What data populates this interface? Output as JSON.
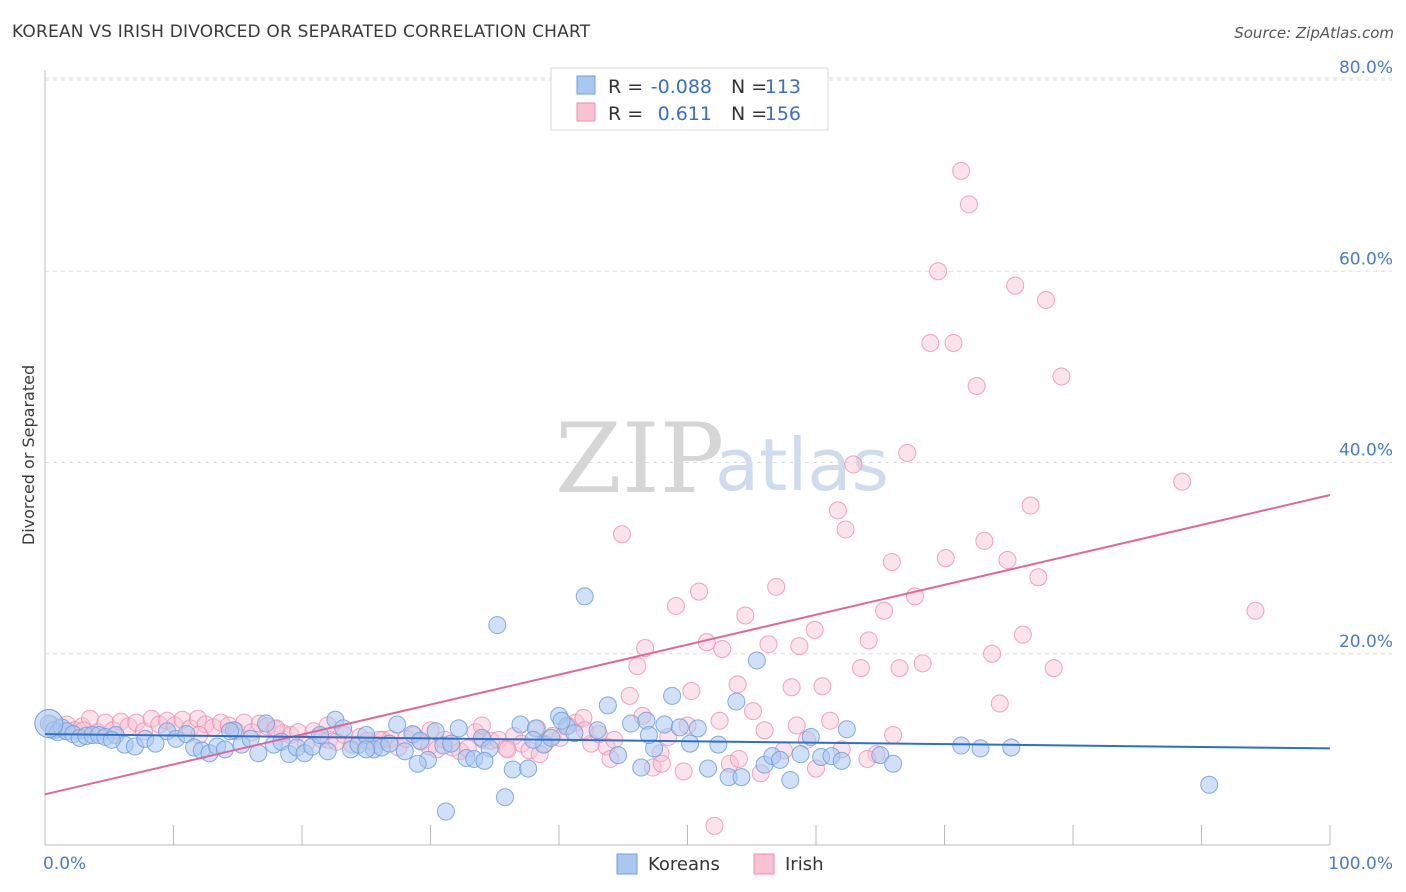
{
  "title": "KOREAN VS IRISH DIVORCED OR SEPARATED CORRELATION CHART",
  "source": "Source: ZipAtlas.com",
  "watermark": {
    "zip": "ZIP",
    "atlas": "atlas"
  },
  "legend": {
    "rows": [
      {
        "r_label": "R =",
        "r_value": "-0.088",
        "n_label": "N =",
        "n_value": "113"
      },
      {
        "r_label": "R =",
        "r_value": "0.611",
        "n_label": "N =",
        "n_value": "156"
      }
    ]
  },
  "bottom_legend": [
    "Koreans",
    "Irish"
  ],
  "colors": {
    "korean_fill": "#a9c8f0",
    "korean_stroke": "#6f9fdc",
    "korean_line": "#2f6fcb",
    "irish_fill": "#f7c2d2",
    "irish_stroke": "#ec8fae",
    "irish_line": "#e0679a",
    "tick": "#4a7cc7",
    "grid": "#dddddd"
  },
  "chart_data": {
    "type": "scatter",
    "title": "KOREAN VS IRISH DIVORCED OR SEPARATED CORRELATION CHART",
    "xlabel": "",
    "ylabel": "Divorced or Separated",
    "xlim": [
      0,
      100
    ],
    "ylim": [
      0,
      80
    ],
    "x_tick_labels": [
      "0.0%",
      "100.0%"
    ],
    "y_ticks": [
      20,
      40,
      60,
      80
    ],
    "y_tick_labels": [
      "20.0%",
      "40.0%",
      "60.0%",
      "80.0%"
    ],
    "grid": true,
    "series": [
      {
        "name": "Koreans",
        "R": -0.088,
        "N": 113,
        "trend": {
          "x": [
            0,
            100
          ],
          "y": [
            11.6,
            10.1
          ]
        },
        "points": [
          [
            0.3,
            12.7
          ],
          [
            0.7,
            12.0
          ],
          [
            1.0,
            11.8
          ],
          [
            1.3,
            12.3
          ],
          [
            1.7,
            11.9
          ],
          [
            2.2,
            11.6
          ],
          [
            2.7,
            11.2
          ],
          [
            3.2,
            11.4
          ],
          [
            3.7,
            11.5
          ],
          [
            4.2,
            11.5
          ],
          [
            4.7,
            11.3
          ],
          [
            5.5,
            11.5
          ],
          [
            6.2,
            10.5
          ],
          [
            7.0,
            10.3
          ],
          [
            7.8,
            11.1
          ],
          [
            8.6,
            10.6
          ],
          [
            9.5,
            11.9
          ],
          [
            10.2,
            11.1
          ],
          [
            11.0,
            11.6
          ],
          [
            11.6,
            10.2
          ],
          [
            12.2,
            9.9
          ],
          [
            12.8,
            9.6
          ],
          [
            13.4,
            10.3
          ],
          [
            14.0,
            10.0
          ],
          [
            14.7,
            12.0
          ],
          [
            15.3,
            10.5
          ],
          [
            16.0,
            11.1
          ],
          [
            16.6,
            9.6
          ],
          [
            17.2,
            12.7
          ],
          [
            17.8,
            10.5
          ],
          [
            18.4,
            10.8
          ],
          [
            19.0,
            9.5
          ],
          [
            19.6,
            10.2
          ],
          [
            20.2,
            9.6
          ],
          [
            20.8,
            10.3
          ],
          [
            21.4,
            11.5
          ],
          [
            22.0,
            9.8
          ],
          [
            22.6,
            13.1
          ],
          [
            23.2,
            12.2
          ],
          [
            23.8,
            10.0
          ],
          [
            24.4,
            10.5
          ],
          [
            25.0,
            11.5
          ],
          [
            25.6,
            10.0
          ],
          [
            26.2,
            10.2
          ],
          [
            26.8,
            10.6
          ],
          [
            27.4,
            12.6
          ],
          [
            28.0,
            9.8
          ],
          [
            28.6,
            11.6
          ],
          [
            29.2,
            10.9
          ],
          [
            29.8,
            8.9
          ],
          [
            30.4,
            11.9
          ],
          [
            31.0,
            10.4
          ],
          [
            31.6,
            10.6
          ],
          [
            32.2,
            12.2
          ],
          [
            32.8,
            9.1
          ],
          [
            33.4,
            9.0
          ],
          [
            34.0,
            11.2
          ],
          [
            34.6,
            10.1
          ],
          [
            35.2,
            23.0
          ],
          [
            35.8,
            5.0
          ],
          [
            36.4,
            7.9
          ],
          [
            37.0,
            12.6
          ],
          [
            37.6,
            8.0
          ],
          [
            38.2,
            12.2
          ],
          [
            38.8,
            10.5
          ],
          [
            39.4,
            11.2
          ],
          [
            40.0,
            13.5
          ],
          [
            40.6,
            12.4
          ],
          [
            41.2,
            11.7
          ],
          [
            42.0,
            26.0
          ],
          [
            43.0,
            12.0
          ],
          [
            43.8,
            14.6
          ],
          [
            44.6,
            9.4
          ],
          [
            45.6,
            12.7
          ],
          [
            46.4,
            8.1
          ],
          [
            46.8,
            13.0
          ],
          [
            47.4,
            10.1
          ],
          [
            48.2,
            12.6
          ],
          [
            48.8,
            15.6
          ],
          [
            49.4,
            12.3
          ],
          [
            50.2,
            10.6
          ],
          [
            50.8,
            12.2
          ],
          [
            51.6,
            8.0
          ],
          [
            52.4,
            10.5
          ],
          [
            53.2,
            7.1
          ],
          [
            53.8,
            15.0
          ],
          [
            54.2,
            7.1
          ],
          [
            55.4,
            19.3
          ],
          [
            56.0,
            8.4
          ],
          [
            56.6,
            9.3
          ],
          [
            57.2,
            8.9
          ],
          [
            58.0,
            6.8
          ],
          [
            58.8,
            9.5
          ],
          [
            59.6,
            11.3
          ],
          [
            60.4,
            9.2
          ],
          [
            61.2,
            9.3
          ],
          [
            62.0,
            8.8
          ],
          [
            62.4,
            12.1
          ],
          [
            65.0,
            9.4
          ],
          [
            66.0,
            8.5
          ],
          [
            71.3,
            10.4
          ],
          [
            72.8,
            10.1
          ],
          [
            75.2,
            10.2
          ],
          [
            90.6,
            6.3
          ],
          [
            34.2,
            8.8
          ],
          [
            31.2,
            3.5
          ],
          [
            14.4,
            11.9
          ],
          [
            5.2,
            11.0
          ],
          [
            25.0,
            10.0
          ],
          [
            29.0,
            8.5
          ],
          [
            40.2,
            13.0
          ],
          [
            47.0,
            11.5
          ],
          [
            38.0,
            11.0
          ]
        ],
        "big_point": [
          0.3,
          12.7
        ]
      },
      {
        "name": "Irish",
        "R": 0.611,
        "N": 156,
        "trend": {
          "x": [
            0,
            100
          ],
          "y": [
            5.3,
            36.6
          ]
        },
        "points": [
          [
            0.5,
            12.6
          ],
          [
            1.1,
            12.2
          ],
          [
            1.7,
            12.6
          ],
          [
            2.3,
            12.0
          ],
          [
            2.9,
            12.4
          ],
          [
            3.5,
            13.2
          ],
          [
            4.1,
            11.8
          ],
          [
            4.7,
            12.8
          ],
          [
            5.3,
            12.0
          ],
          [
            5.9,
            12.9
          ],
          [
            6.5,
            12.4
          ],
          [
            7.1,
            12.8
          ],
          [
            7.7,
            11.9
          ],
          [
            8.3,
            13.2
          ],
          [
            8.9,
            12.6
          ],
          [
            9.5,
            13.0
          ],
          [
            10.1,
            12.5
          ],
          [
            10.7,
            13.1
          ],
          [
            11.3,
            12.2
          ],
          [
            11.9,
            13.2
          ],
          [
            12.5,
            12.6
          ],
          [
            13.1,
            12.3
          ],
          [
            13.7,
            12.8
          ],
          [
            14.3,
            12.5
          ],
          [
            14.9,
            11.9
          ],
          [
            15.5,
            12.8
          ],
          [
            16.1,
            11.8
          ],
          [
            16.7,
            12.7
          ],
          [
            17.3,
            12.4
          ],
          [
            17.9,
            12.1
          ],
          [
            18.5,
            11.7
          ],
          [
            19.1,
            11.5
          ],
          [
            19.7,
            11.8
          ],
          [
            20.3,
            10.6
          ],
          [
            20.9,
            11.9
          ],
          [
            21.5,
            11.1
          ],
          [
            22.1,
            11.0
          ],
          [
            22.7,
            10.8
          ],
          [
            23.3,
            11.5
          ],
          [
            23.9,
            10.5
          ],
          [
            24.5,
            11.3
          ],
          [
            25.1,
            10.9
          ],
          [
            25.7,
            10.5
          ],
          [
            26.3,
            11.0
          ],
          [
            26.9,
            11.1
          ],
          [
            27.5,
            10.2
          ],
          [
            28.1,
            11.1
          ],
          [
            28.7,
            11.5
          ],
          [
            29.3,
            10.8
          ],
          [
            29.9,
            10.3
          ],
          [
            30.5,
            10.0
          ],
          [
            31.1,
            11.0
          ],
          [
            31.7,
            10.2
          ],
          [
            32.3,
            9.8
          ],
          [
            32.9,
            10.1
          ],
          [
            33.5,
            11.8
          ],
          [
            34.1,
            11.0
          ],
          [
            34.7,
            10.9
          ],
          [
            35.3,
            11.0
          ],
          [
            35.9,
            10.1
          ],
          [
            36.5,
            11.4
          ],
          [
            37.1,
            10.6
          ],
          [
            37.7,
            9.9
          ],
          [
            38.3,
            12.2
          ],
          [
            38.9,
            10.6
          ],
          [
            39.5,
            11.4
          ],
          [
            40.1,
            11.2
          ],
          [
            40.7,
            12.5
          ],
          [
            41.3,
            12.8
          ],
          [
            41.9,
            13.3
          ],
          [
            42.5,
            10.6
          ],
          [
            43.1,
            11.6
          ],
          [
            43.7,
            10.3
          ],
          [
            44.3,
            11.0
          ],
          [
            44.9,
            32.5
          ],
          [
            45.5,
            15.6
          ],
          [
            46.1,
            18.7
          ],
          [
            46.7,
            20.6
          ],
          [
            47.3,
            8.1
          ],
          [
            47.9,
            9.6
          ],
          [
            48.5,
            11.3
          ],
          [
            49.1,
            25.0
          ],
          [
            49.7,
            7.7
          ],
          [
            50.3,
            16.1
          ],
          [
            50.9,
            26.5
          ],
          [
            51.5,
            21.2
          ],
          [
            52.1,
            2.0
          ],
          [
            52.7,
            20.5
          ],
          [
            53.3,
            8.5
          ],
          [
            53.9,
            16.8
          ],
          [
            54.5,
            24.0
          ],
          [
            55.1,
            14.0
          ],
          [
            55.7,
            7.5
          ],
          [
            56.3,
            21.0
          ],
          [
            56.9,
            27.0
          ],
          [
            57.5,
            9.9
          ],
          [
            58.1,
            16.5
          ],
          [
            58.7,
            20.8
          ],
          [
            59.3,
            11.0
          ],
          [
            59.9,
            22.5
          ],
          [
            60.5,
            16.6
          ],
          [
            61.1,
            13.0
          ],
          [
            61.7,
            35.0
          ],
          [
            62.3,
            33.0
          ],
          [
            62.9,
            39.8
          ],
          [
            63.5,
            18.5
          ],
          [
            64.1,
            21.4
          ],
          [
            64.7,
            9.5
          ],
          [
            65.3,
            24.5
          ],
          [
            65.9,
            29.6
          ],
          [
            66.5,
            18.5
          ],
          [
            67.1,
            41.0
          ],
          [
            67.7,
            26.0
          ],
          [
            68.3,
            19.0
          ],
          [
            68.9,
            52.5
          ],
          [
            69.5,
            60.0
          ],
          [
            70.1,
            30.0
          ],
          [
            70.7,
            52.5
          ],
          [
            71.3,
            70.5
          ],
          [
            71.9,
            67.0
          ],
          [
            72.5,
            48.0
          ],
          [
            73.1,
            31.8
          ],
          [
            73.7,
            20.0
          ],
          [
            74.3,
            14.8
          ],
          [
            74.9,
            29.8
          ],
          [
            75.5,
            58.5
          ],
          [
            76.1,
            22.0
          ],
          [
            76.7,
            35.5
          ],
          [
            77.3,
            28.0
          ],
          [
            77.9,
            57.0
          ],
          [
            78.5,
            18.5
          ],
          [
            79.1,
            49.0
          ],
          [
            88.5,
            38.0
          ],
          [
            94.2,
            24.5
          ],
          [
            12.0,
            11.5
          ],
          [
            18.0,
            12.2
          ],
          [
            22.0,
            12.5
          ],
          [
            26.0,
            11.0
          ],
          [
            30.0,
            12.0
          ],
          [
            34.0,
            12.5
          ],
          [
            36.0,
            10.0
          ],
          [
            38.5,
            9.5
          ],
          [
            42.0,
            12.0
          ],
          [
            44.0,
            9.0
          ],
          [
            46.5,
            13.5
          ],
          [
            48.0,
            8.5
          ],
          [
            50.0,
            12.5
          ],
          [
            52.5,
            13.0
          ],
          [
            54.0,
            9.0
          ],
          [
            56.0,
            12.0
          ],
          [
            58.5,
            12.5
          ],
          [
            60.0,
            8.0
          ],
          [
            62.0,
            10.0
          ],
          [
            64.0,
            9.0
          ],
          [
            66.0,
            11.5
          ],
          [
            3.0,
            12.0
          ]
        ]
      }
    ]
  }
}
